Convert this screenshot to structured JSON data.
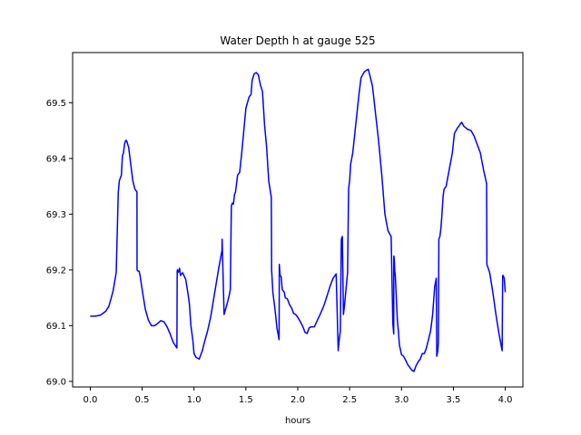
{
  "chart_data": {
    "type": "line",
    "title": "Water Depth h at gauge 525",
    "xlabel": "hours",
    "ylabel": "",
    "xlim": [
      -0.17,
      4.17
    ],
    "ylim": [
      68.99,
      69.59
    ],
    "xticks": [
      0.0,
      0.5,
      1.0,
      1.5,
      2.0,
      2.5,
      3.0,
      3.5,
      4.0
    ],
    "xtick_labels": [
      "0.0",
      "0.5",
      "1.0",
      "1.5",
      "2.0",
      "2.5",
      "3.0",
      "3.5",
      "4.0"
    ],
    "yticks": [
      69.0,
      69.1,
      69.2,
      69.3,
      69.4,
      69.5
    ],
    "ytick_labels": [
      "69.0",
      "69.1",
      "69.2",
      "69.3",
      "69.4",
      "69.5"
    ],
    "grid": false,
    "series": [
      {
        "color": "#0000ff",
        "x": [
          0.0,
          0.05,
          0.1,
          0.15,
          0.18,
          0.22,
          0.25,
          0.27,
          0.273,
          0.28,
          0.3,
          0.31,
          0.32,
          0.33,
          0.34,
          0.35,
          0.37,
          0.39,
          0.41,
          0.43,
          0.45,
          0.451,
          0.46,
          0.47,
          0.48,
          0.5,
          0.53,
          0.56,
          0.59,
          0.62,
          0.65,
          0.68,
          0.71,
          0.74,
          0.77,
          0.8,
          0.835,
          0.838,
          0.84,
          0.85,
          0.86,
          0.87,
          0.89,
          0.92,
          0.94,
          0.955,
          0.97,
          0.99,
          1.0,
          1.02,
          1.05,
          1.08,
          1.1,
          1.13,
          1.16,
          1.2,
          1.24,
          1.27,
          1.271,
          1.29,
          1.32,
          1.34,
          1.35,
          1.36,
          1.37,
          1.38,
          1.39,
          1.4,
          1.42,
          1.44,
          1.46,
          1.48,
          1.5,
          1.53,
          1.55,
          1.56,
          1.58,
          1.6,
          1.62,
          1.64,
          1.66,
          1.68,
          1.7,
          1.72,
          1.745,
          1.748,
          1.76,
          1.78,
          1.8,
          1.82,
          1.822,
          1.83,
          1.84,
          1.85,
          1.87,
          1.88,
          1.9,
          1.92,
          1.94,
          1.96,
          1.98,
          2.0,
          2.03,
          2.05,
          2.07,
          2.09,
          2.11,
          2.13,
          2.16,
          2.19,
          2.22,
          2.25,
          2.28,
          2.31,
          2.34,
          2.37,
          2.39,
          2.391,
          2.4,
          2.41,
          2.42,
          2.43,
          2.44,
          2.45,
          2.46,
          2.47,
          2.48,
          2.49,
          2.5,
          2.51,
          2.53,
          2.55,
          2.57,
          2.59,
          2.61,
          2.64,
          2.66,
          2.68,
          2.7,
          2.72,
          2.75,
          2.78,
          2.81,
          2.84,
          2.87,
          2.9,
          2.915,
          2.916,
          2.925,
          2.926,
          2.93,
          2.935,
          2.94,
          2.95,
          2.96,
          2.97,
          2.98,
          3.0,
          3.02,
          3.04,
          3.06,
          3.08,
          3.1,
          3.12,
          3.14,
          3.16,
          3.18,
          3.2,
          3.22,
          3.24,
          3.26,
          3.28,
          3.3,
          3.32,
          3.335,
          3.34,
          3.35,
          3.355,
          3.36,
          3.37,
          3.38,
          3.39,
          3.4,
          3.41,
          3.43,
          3.45,
          3.47,
          3.49,
          3.51,
          3.54,
          3.56,
          3.58,
          3.6,
          3.62,
          3.64,
          3.67,
          3.7,
          3.73,
          3.76,
          3.79,
          3.82,
          3.823,
          3.85,
          3.88,
          3.91,
          3.94,
          3.97,
          3.975,
          3.98,
          3.99,
          4.0
        ],
        "y": [
          69.117,
          69.117,
          69.119,
          69.126,
          69.135,
          69.162,
          69.195,
          69.34,
          69.345,
          69.36,
          69.37,
          69.405,
          69.41,
          69.425,
          69.432,
          69.432,
          69.42,
          69.39,
          69.36,
          69.345,
          69.34,
          69.2,
          69.198,
          69.198,
          69.19,
          69.165,
          69.13,
          69.11,
          69.1,
          69.1,
          69.104,
          69.109,
          69.107,
          69.098,
          69.085,
          69.07,
          69.06,
          69.198,
          69.2,
          69.196,
          69.203,
          69.19,
          69.195,
          69.183,
          69.16,
          69.14,
          69.1,
          69.072,
          69.05,
          69.043,
          69.04,
          69.055,
          69.07,
          69.09,
          69.115,
          69.16,
          69.205,
          69.235,
          69.255,
          69.12,
          69.14,
          69.155,
          69.165,
          69.315,
          69.32,
          69.318,
          69.335,
          69.34,
          69.37,
          69.375,
          69.41,
          69.45,
          69.49,
          69.51,
          69.515,
          69.54,
          69.552,
          69.554,
          69.55,
          69.532,
          69.52,
          69.46,
          69.42,
          69.36,
          69.33,
          69.2,
          69.16,
          69.13,
          69.095,
          69.075,
          69.21,
          69.19,
          69.188,
          69.165,
          69.16,
          69.15,
          69.148,
          69.138,
          69.132,
          69.122,
          69.12,
          69.115,
          69.105,
          69.098,
          69.088,
          69.086,
          69.096,
          69.098,
          69.098,
          69.11,
          69.122,
          69.135,
          69.152,
          69.17,
          69.185,
          69.193,
          69.055,
          69.06,
          69.075,
          69.09,
          69.255,
          69.26,
          69.12,
          69.135,
          69.155,
          69.175,
          69.195,
          69.345,
          69.36,
          69.39,
          69.41,
          69.445,
          69.48,
          69.515,
          69.545,
          69.555,
          69.558,
          69.56,
          69.545,
          69.53,
          69.48,
          69.43,
          69.37,
          69.3,
          69.27,
          69.26,
          69.12,
          69.105,
          69.085,
          69.225,
          69.22,
          69.198,
          69.19,
          69.15,
          69.11,
          69.09,
          69.065,
          69.048,
          69.045,
          69.038,
          69.03,
          69.025,
          69.02,
          69.018,
          69.028,
          69.035,
          69.04,
          69.05,
          69.05,
          69.06,
          69.075,
          69.09,
          69.12,
          69.17,
          69.185,
          69.045,
          69.055,
          69.07,
          69.255,
          69.26,
          69.275,
          69.3,
          69.33,
          69.345,
          69.35,
          69.37,
          69.39,
          69.41,
          69.445,
          69.455,
          69.46,
          69.465,
          69.458,
          69.455,
          69.452,
          69.45,
          69.44,
          69.425,
          69.41,
          69.38,
          69.355,
          69.21,
          69.195,
          69.16,
          69.12,
          69.085,
          69.055,
          69.19,
          69.19,
          69.185,
          69.16
        ]
      }
    ]
  }
}
